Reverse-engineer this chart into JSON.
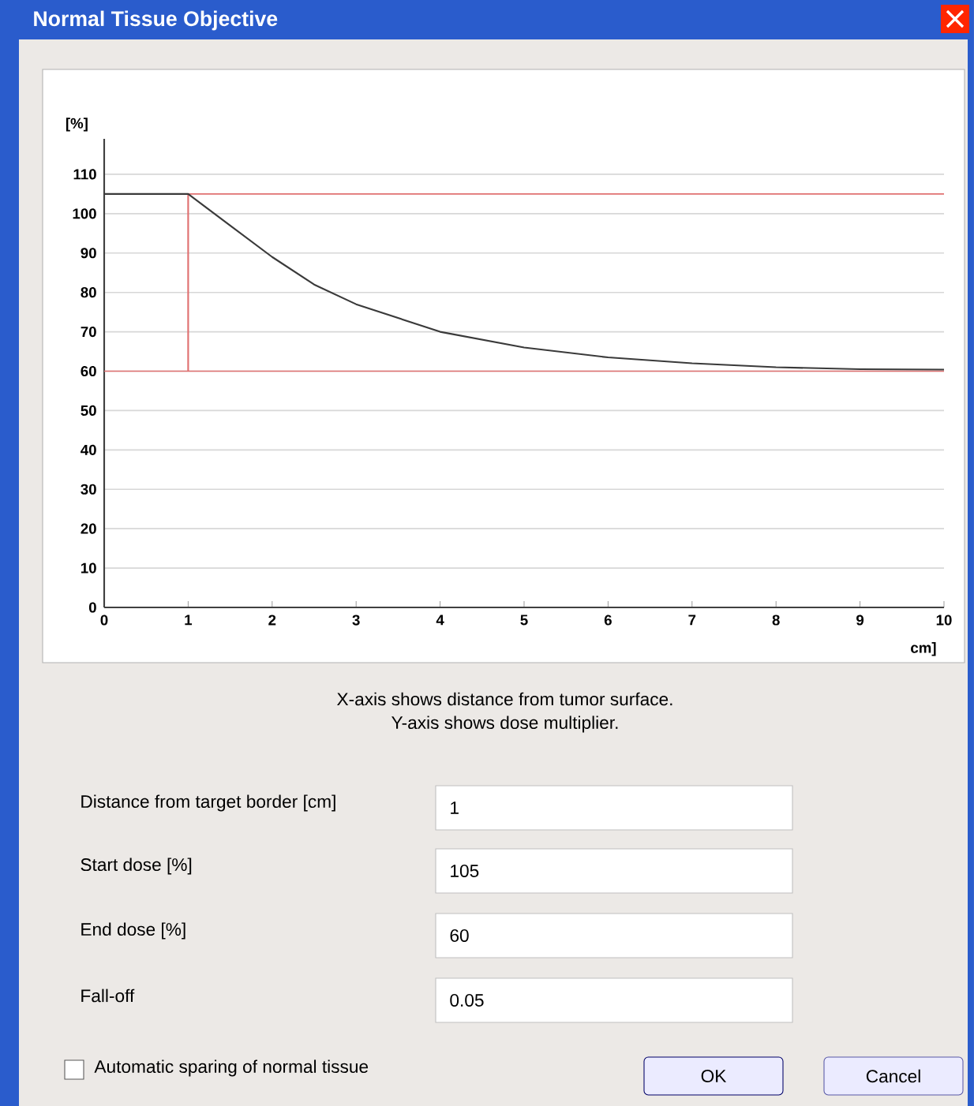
{
  "chart_data": {
    "type": "line",
    "title": "Normal Tissue Objective",
    "xlabel": "cm]",
    "ylabel": "[%]",
    "xlim": [
      0,
      10
    ],
    "ylim": [
      0,
      119
    ],
    "xticks": [
      0,
      1,
      2,
      3,
      4,
      5,
      6,
      7,
      8,
      9,
      10
    ],
    "yticks": [
      0,
      10,
      20,
      30,
      40,
      50,
      60,
      70,
      80,
      90,
      100,
      110
    ],
    "grid": "y",
    "marker": "none",
    "line_style": "solid",
    "series": [
      {
        "color": "#3a3a3a",
        "x": [
          0,
          1,
          1.5,
          2,
          2.5,
          3,
          3.5,
          4,
          5,
          6,
          7,
          8,
          9,
          10
        ],
        "values": [
          105,
          105,
          97,
          89,
          82,
          77,
          73.5,
          70,
          66,
          63.5,
          62,
          61,
          60.5,
          60.4
        ]
      },
      {
        "color": "#e07070",
        "x": [
          1,
          1
        ],
        "values": [
          60,
          105
        ]
      }
    ],
    "ref_lines": [
      {
        "axis": "y",
        "value": 105,
        "color": "#e07070"
      },
      {
        "axis": "y",
        "value": 60,
        "color": "#e07070"
      }
    ],
    "annotations": [
      "X-axis shows distance from tumor surface.",
      "Y-axis shows dose multiplier.",
      "Distance from target border [cm]",
      "1",
      "Start dose [%]",
      "105",
      "End dose [%]",
      "60",
      "Fall-off",
      "0.05",
      "Automatic sparing of normal tissue",
      "OK",
      "Cancel"
    ]
  }
}
